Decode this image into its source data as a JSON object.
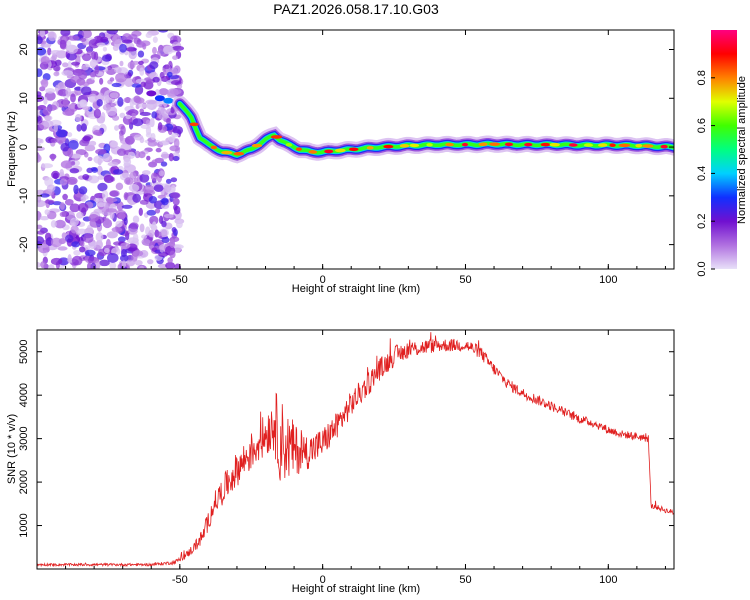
{
  "figure_title": "PAZ1.2026.058.17.10.G03",
  "chart_data": [
    {
      "type": "heatmap",
      "title": "PAZ1.2026.058.17.10.G03",
      "xlabel": "Height of straight line (km)",
      "ylabel": "Frequency (Hz)",
      "xlim": [
        -100,
        123
      ],
      "ylim": [
        -25,
        24
      ],
      "xticks": [
        -50,
        0,
        50,
        100
      ],
      "yticks": [
        -20,
        -10,
        0,
        10,
        20
      ],
      "colorbar": {
        "label": "Normalized spectral amplitude",
        "range": [
          0.0,
          1.0
        ],
        "ticks": [
          0.0,
          0.2,
          0.4,
          0.6,
          0.8
        ],
        "tick_labels": [
          "0.0",
          "0.2",
          "0.4",
          "0.6",
          "0.8"
        ],
        "colormap": [
          "#e8e0f8",
          "#b070e0",
          "#7010d0",
          "#1030ff",
          "#00d0ff",
          "#00ff80",
          "#40ff00",
          "#e0ff00",
          "#ff8000",
          "#ff0000",
          "#ff0080"
        ]
      },
      "ridge": {
        "height_km": [
          -50,
          -46,
          -43,
          -40,
          -35,
          -30,
          -25,
          -20,
          -17,
          -15,
          -12,
          -8,
          -4,
          0,
          10,
          20,
          30,
          40,
          50,
          60,
          70,
          80,
          90,
          100,
          110,
          123
        ],
        "frequency_hz": [
          9,
          6,
          2,
          0.5,
          -1,
          -1.5,
          -0.5,
          1.5,
          2.5,
          1.5,
          0.5,
          -0.5,
          -1,
          -1,
          -0.5,
          0,
          0.3,
          0.5,
          0.5,
          0.6,
          0.5,
          0.5,
          0.4,
          0.4,
          0.3,
          0
        ]
      },
      "noise_region_km": [
        -100,
        -50
      ]
    },
    {
      "type": "line",
      "xlabel": "Height of straight line (km)",
      "ylabel": "SNR (10 * v/v)",
      "xlim": [
        -100,
        123
      ],
      "ylim": [
        0,
        5500
      ],
      "xticks": [
        -50,
        0,
        50,
        100
      ],
      "yticks": [
        1000,
        2000,
        3000,
        4000,
        5000
      ],
      "color": "#e02020",
      "series": [
        {
          "name": "SNR",
          "x": [
            -100,
            -60,
            -52,
            -48,
            -45,
            -42,
            -40,
            -38,
            -35,
            -32,
            -30,
            -25,
            -20,
            -17,
            -15,
            -12,
            -8,
            -5,
            0,
            5,
            10,
            15,
            20,
            25,
            30,
            35,
            40,
            45,
            50,
            55,
            60,
            65,
            70,
            75,
            80,
            85,
            90,
            95,
            100,
            105,
            110,
            114,
            115,
            118,
            120,
            123
          ],
          "y": [
            100,
            100,
            150,
            300,
            500,
            750,
            1100,
            1500,
            1800,
            2100,
            2300,
            2700,
            3100,
            3400,
            3000,
            2800,
            2700,
            2700,
            2900,
            3300,
            3800,
            4200,
            4600,
            4900,
            5050,
            5100,
            5150,
            5150,
            5150,
            5000,
            4600,
            4250,
            4050,
            3900,
            3750,
            3600,
            3450,
            3350,
            3200,
            3100,
            3050,
            3000,
            1450,
            1400,
            1350,
            1300
          ],
          "noise_amplitude": [
            30,
            30,
            40,
            80,
            120,
            180,
            220,
            260,
            320,
            360,
            400,
            450,
            500,
            700,
            1000,
            800,
            500,
            400,
            350,
            320,
            300,
            280,
            260,
            240,
            200,
            180,
            160,
            150,
            150,
            150,
            140,
            130,
            120,
            120,
            110,
            110,
            100,
            100,
            100,
            90,
            90,
            90,
            60,
            60,
            60,
            60
          ]
        }
      ]
    }
  ]
}
